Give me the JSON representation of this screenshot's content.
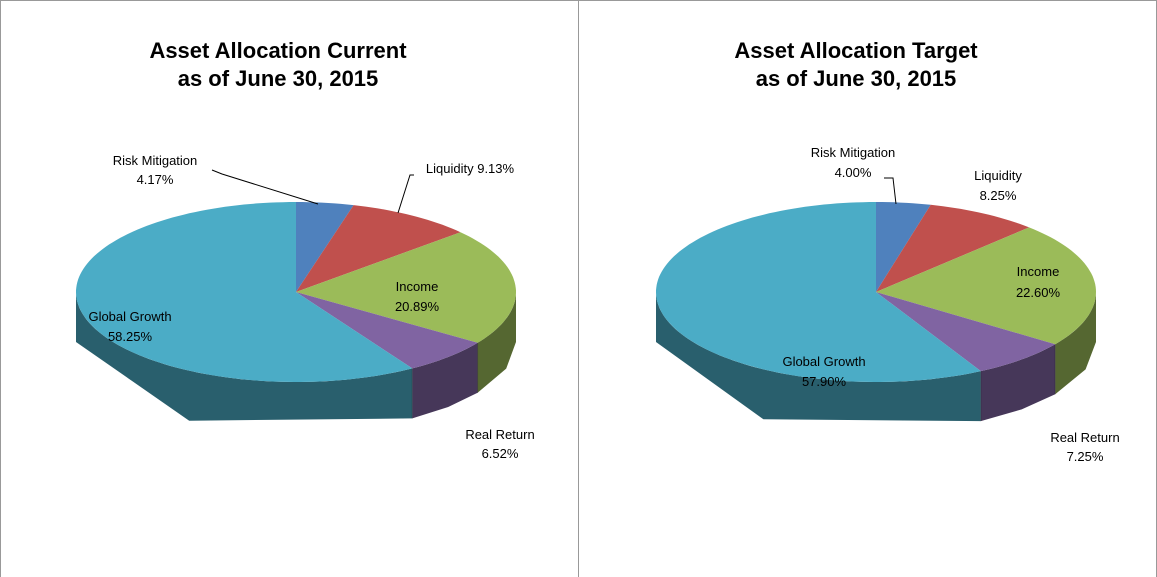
{
  "chart_data": [
    {
      "type": "pie3d",
      "title": "Asset Allocation Current",
      "subtitle": "as of June 30, 2015",
      "categories": [
        "Risk Mitigation",
        "Liquidity",
        "Income",
        "Real Return",
        "Global Growth"
      ],
      "values": [
        4.17,
        9.13,
        20.89,
        6.52,
        58.25
      ],
      "value_labels": [
        "4.17%",
        "9.13%",
        "20.89%",
        "6.52%",
        "58.25%"
      ],
      "colors": [
        "#4f81bd",
        "#c0504d",
        "#9bbb59",
        "#8064a2",
        "#4bacc6"
      ]
    },
    {
      "type": "pie3d",
      "title": "Asset Allocation Target",
      "subtitle": "as of June 30, 2015",
      "categories": [
        "Risk Mitigation",
        "Liquidity",
        "Income",
        "Real Return",
        "Global Growth"
      ],
      "values": [
        4.0,
        8.25,
        22.6,
        7.25,
        57.9
      ],
      "value_labels": [
        "4.00%",
        "8.25%",
        "22.60%",
        "7.25%",
        "57.90%"
      ],
      "colors": [
        "#4f81bd",
        "#c0504d",
        "#9bbb59",
        "#8064a2",
        "#4bacc6"
      ]
    }
  ]
}
